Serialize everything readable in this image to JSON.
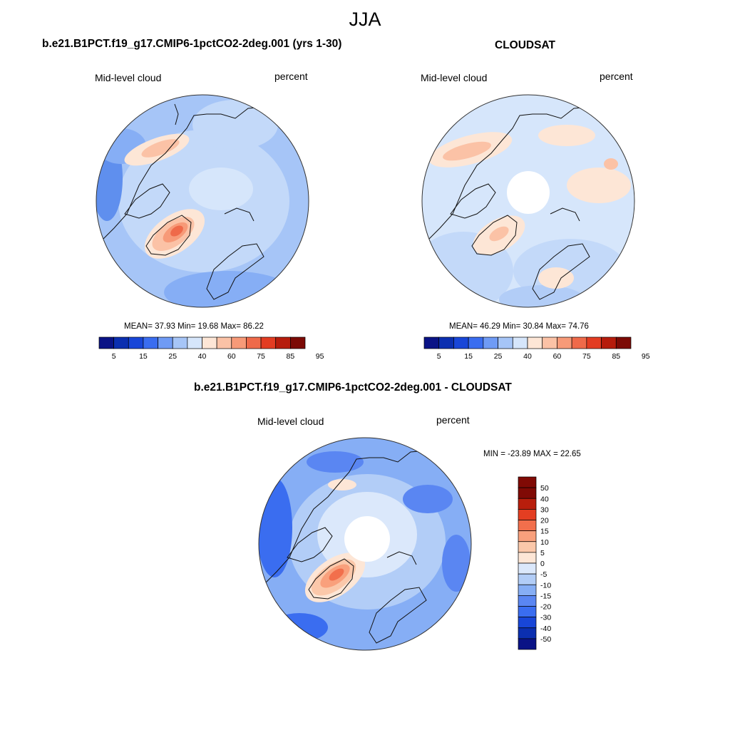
{
  "season": "JJA",
  "colors": {
    "seq": [
      "#0a1386",
      "#0b2fb0",
      "#1846d8",
      "#3a6df0",
      "#6f9bf5",
      "#a6c5f7",
      "#d6e6fb",
      "#fde6d6",
      "#fbc2a6",
      "#f79a78",
      "#ef6a4a",
      "#e33c22",
      "#b61c0c",
      "#7c0a05"
    ],
    "diff": [
      "#0a1386",
      "#0b2fb0",
      "#1846d8",
      "#3a6df0",
      "#5a86f2",
      "#86aef5",
      "#b2cdf7",
      "#dbe8fb",
      "#fde6d6",
      "#fbc8aa",
      "#f9a07c",
      "#f26f4c",
      "#e43e22",
      "#b81e0c",
      "#800a05"
    ],
    "coast": "#111111",
    "holeFill": "#ffffff"
  },
  "panels": [
    {
      "title": "b.e21.B1PCT.f19_g17.CMIP6-1pctCO2-2deg.001 (yrs 1-30)",
      "variable": "Mid-level cloud",
      "units": "percent",
      "stats_text": "MEAN=  37.93  Min=  19.68  Max=  86.22",
      "mean": 37.93,
      "min": 19.68,
      "max": 86.22,
      "colorbar_ticks": [
        "5",
        "15",
        "25",
        "40",
        "60",
        "75",
        "85",
        "95"
      ]
    },
    {
      "title": "CLOUDSAT",
      "variable": "Mid-level cloud",
      "units": "percent",
      "stats_text": "MEAN=  46.29  Min=  30.84  Max=  74.76",
      "mean": 46.29,
      "min": 30.84,
      "max": 74.76,
      "colorbar_ticks": [
        "5",
        "15",
        "25",
        "40",
        "60",
        "75",
        "85",
        "95"
      ]
    },
    {
      "title": "b.e21.B1PCT.f19_g17.CMIP6-1pctCO2-2deg.001 - CLOUDSAT",
      "variable": "Mid-level cloud",
      "units": "percent",
      "stats_text": "MIN = -23.89 MAX =  22.65",
      "min": -23.89,
      "max": 22.65,
      "colorbar_ticks": [
        "50",
        "40",
        "30",
        "20",
        "15",
        "10",
        "5",
        "0",
        "-5",
        "-10",
        "-15",
        "-20",
        "-30",
        "-40",
        "-50"
      ]
    }
  ]
}
